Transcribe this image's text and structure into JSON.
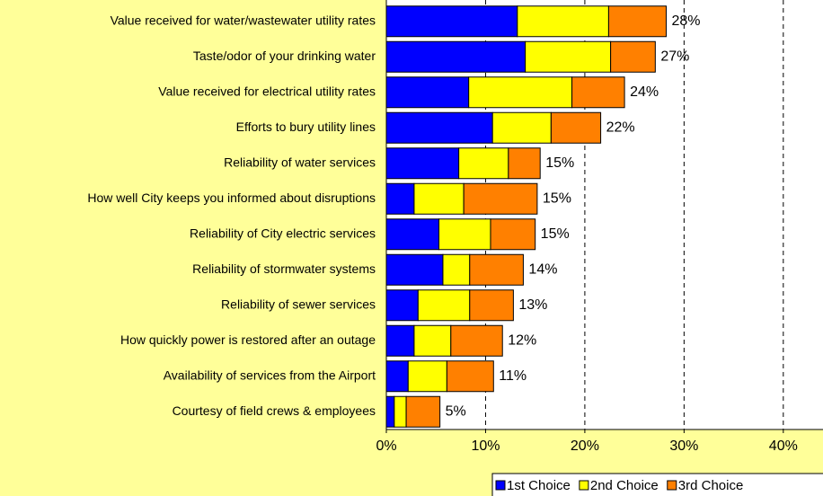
{
  "chart_data": {
    "type": "stacked-bar-horizontal",
    "categories": [
      "Value received for water/wastewater utility rates",
      "Taste/odor of your drinking water",
      "Value received for electrical utility rates",
      "Efforts to bury utility lines",
      "Reliability of water services",
      "How well City keeps you informed about disruptions",
      "Reliability of City electric services",
      "Reliability of stormwater systems",
      "Reliability of sewer services",
      "How quickly power is restored after an outage",
      "Availability of services from the Airport",
      "Courtesy of field crews & employees"
    ],
    "series": [
      {
        "name": "1st Choice",
        "color": "#0000ff",
        "values": [
          13.2,
          14.0,
          8.3,
          10.7,
          7.3,
          2.8,
          5.3,
          5.7,
          3.2,
          2.8,
          2.2,
          0.8
        ]
      },
      {
        "name": "2nd Choice",
        "color": "#ffff00",
        "values": [
          9.2,
          8.6,
          10.4,
          5.9,
          5.0,
          5.0,
          5.2,
          2.7,
          5.2,
          3.7,
          3.9,
          1.2
        ]
      },
      {
        "name": "3rd Choice",
        "color": "#ff8000",
        "values": [
          5.8,
          4.5,
          5.3,
          5.0,
          3.2,
          7.4,
          4.5,
          5.4,
          4.4,
          5.2,
          4.7,
          3.4
        ]
      }
    ],
    "total_labels": [
      "28%",
      "27%",
      "24%",
      "22%",
      "15%",
      "15%",
      "15%",
      "14%",
      "13%",
      "12%",
      "11%",
      "5%"
    ],
    "xlim": [
      0,
      44
    ],
    "xticks": [
      {
        "value": 0,
        "label": "0%"
      },
      {
        "value": 10,
        "label": "10%"
      },
      {
        "value": 20,
        "label": "20%"
      },
      {
        "value": 30,
        "label": "30%"
      },
      {
        "value": 40,
        "label": "40%"
      }
    ],
    "grid": true,
    "legend": "bottom-right"
  }
}
